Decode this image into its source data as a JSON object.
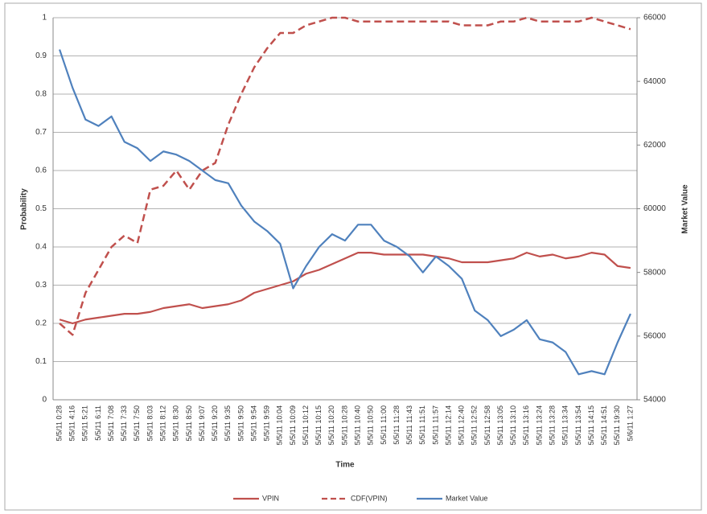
{
  "chart_data": {
    "type": "line",
    "x_label": "Time",
    "y_label": "Probability",
    "y2_label": "Market Value",
    "categories": [
      "5/5/11 0:28",
      "5/5/11 4:16",
      "5/5/11 5:21",
      "5/5/11 6:11",
      "5/5/11 7:08",
      "5/5/11 7:33",
      "5/5/11 7:50",
      "5/5/11 8:03",
      "5/5/11 8:12",
      "5/5/11 8:30",
      "5/5/11 8:50",
      "5/5/11 9:07",
      "5/5/11 9:20",
      "5/5/11 9:35",
      "5/5/11 9:50",
      "5/5/11 9:54",
      "5/5/11 9:59",
      "5/5/11 10:04",
      "5/5/11 10:09",
      "5/5/11 10:12",
      "5/5/11 10:15",
      "5/5/11 10:20",
      "5/5/11 10:28",
      "5/5/11 10:40",
      "5/5/11 10:50",
      "5/5/11 11:00",
      "5/5/11 11:28",
      "5/5/11 11:43",
      "5/5/11 11:51",
      "5/5/11 11:57",
      "5/5/11 12:14",
      "5/5/11 12:40",
      "5/5/11 12:52",
      "5/5/11 12:58",
      "5/5/11 13:05",
      "5/5/11 13:10",
      "5/5/11 13:16",
      "5/5/11 13:24",
      "5/5/11 13:28",
      "5/5/11 13:34",
      "5/5/11 13:54",
      "5/5/11 14:15",
      "5/5/11 14:51",
      "5/5/11 19:30",
      "5/6/11 1:27"
    ],
    "series": [
      {
        "name": "VPIN",
        "color": "#c0504d",
        "dashed": false,
        "values": [
          0.21,
          0.2,
          0.21,
          0.215,
          0.22,
          0.225,
          0.225,
          0.23,
          0.24,
          0.245,
          0.25,
          0.24,
          0.245,
          0.25,
          0.26,
          0.28,
          0.29,
          0.3,
          0.31,
          0.33,
          0.34,
          0.355,
          0.37,
          0.385,
          0.385,
          0.38,
          0.38,
          0.38,
          0.38,
          0.375,
          0.37,
          0.36,
          0.36,
          0.36,
          0.365,
          0.37,
          0.385,
          0.375,
          0.38,
          0.37,
          0.375,
          0.385,
          0.38,
          0.35,
          0.345
        ]
      },
      {
        "name": "CDF(VPIN)",
        "color": "#c0504d",
        "dashed": true,
        "values": [
          0.2,
          0.17,
          0.28,
          0.34,
          0.4,
          0.43,
          0.41,
          0.55,
          0.56,
          0.6,
          0.55,
          0.6,
          0.62,
          0.72,
          0.8,
          0.87,
          0.92,
          0.96,
          0.96,
          0.98,
          0.99,
          1.0,
          1.0,
          0.99,
          0.99,
          0.99,
          0.99,
          0.99,
          0.99,
          0.99,
          0.99,
          0.98,
          0.98,
          0.98,
          0.99,
          0.99,
          1.0,
          0.99,
          0.99,
          0.99,
          0.99,
          1.0,
          0.99,
          0.98,
          0.97
        ]
      },
      {
        "name": "Market Value",
        "color": "#4f81bd",
        "dashed": false,
        "axis": "y2",
        "values": [
          65000,
          63800,
          62800,
          62600,
          62900,
          62100,
          61900,
          61500,
          61800,
          61700,
          61500,
          61200,
          60900,
          60800,
          60100,
          59600,
          59300,
          58900,
          57500,
          58200,
          58800,
          59200,
          59000,
          59500,
          59500,
          59000,
          58800,
          58500,
          58000,
          58500,
          58200,
          57800,
          56800,
          56500,
          56000,
          56200,
          56500,
          55900,
          55800,
          55500,
          54800,
          54900,
          54800,
          55800,
          56700
        ]
      }
    ],
    "ylim": [
      0,
      1
    ],
    "yticks": [
      0,
      0.1,
      0.2,
      0.3,
      0.4,
      0.5,
      0.6,
      0.7,
      0.8,
      0.9,
      1
    ],
    "y2lim": [
      54000,
      66000
    ],
    "y2ticks": [
      54000,
      56000,
      58000,
      60000,
      62000,
      64000,
      66000
    ],
    "grid": true
  }
}
